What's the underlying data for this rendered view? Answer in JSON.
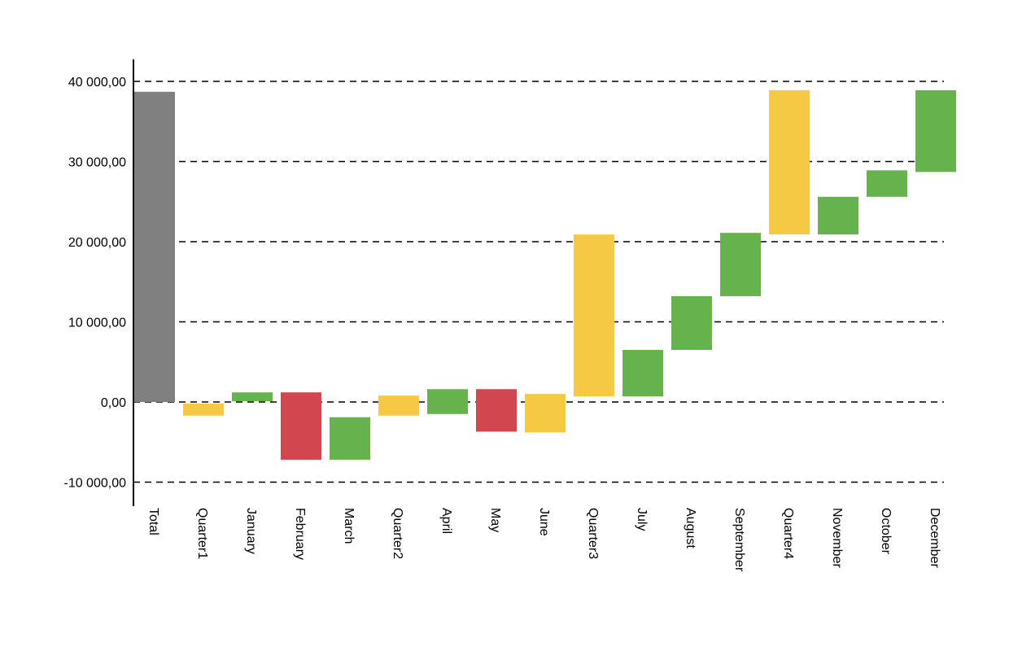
{
  "chart_data": {
    "type": "waterfall",
    "title": "",
    "xlabel": "",
    "ylabel": "",
    "ylim": [
      -13000,
      43000
    ],
    "grid": "horizontal dashed",
    "yticks": [
      {
        "value": 40000,
        "label": "40 000,00"
      },
      {
        "value": 30000,
        "label": "30 000,00"
      },
      {
        "value": 20000,
        "label": "20 000,00"
      },
      {
        "value": 10000,
        "label": "10 000,00"
      },
      {
        "value": 0,
        "label": "0,00"
      },
      {
        "value": -10000,
        "label": "-10 000,00"
      }
    ],
    "bars": [
      {
        "category": "Total",
        "start": 0,
        "end": 38700,
        "kind": "total"
      },
      {
        "category": "Quarter1",
        "start": -200,
        "end": -1700,
        "kind": "subtotal"
      },
      {
        "category": "January",
        "start": 100,
        "end": 1200,
        "kind": "increase"
      },
      {
        "category": "February",
        "start": 1200,
        "end": -7200,
        "kind": "decrease"
      },
      {
        "category": "March",
        "start": -7200,
        "end": -1900,
        "kind": "increase"
      },
      {
        "category": "Quarter2",
        "start": -1700,
        "end": 800,
        "kind": "subtotal"
      },
      {
        "category": "April",
        "start": -1500,
        "end": 1600,
        "kind": "increase"
      },
      {
        "category": "May",
        "start": 1600,
        "end": -3700,
        "kind": "decrease"
      },
      {
        "category": "June",
        "start": -3800,
        "end": 1000,
        "kind": "subtotal"
      },
      {
        "category": "Quarter3",
        "start": 700,
        "end": 20900,
        "kind": "subtotal"
      },
      {
        "category": "July",
        "start": 700,
        "end": 6500,
        "kind": "increase"
      },
      {
        "category": "August",
        "start": 6500,
        "end": 13200,
        "kind": "increase"
      },
      {
        "category": "September",
        "start": 13200,
        "end": 21100,
        "kind": "increase"
      },
      {
        "category": "Quarter4",
        "start": 20900,
        "end": 38900,
        "kind": "subtotal"
      },
      {
        "category": "November",
        "start": 20900,
        "end": 25600,
        "kind": "increase"
      },
      {
        "category": "October",
        "start": 25600,
        "end": 28900,
        "kind": "increase"
      },
      {
        "category": "December",
        "start": 28700,
        "end": 38900,
        "kind": "increase"
      }
    ],
    "colors": {
      "total": "#808080",
      "subtotal": "#f6c945",
      "increase": "#66b34d",
      "decrease": "#d1464f",
      "axis": "#000000",
      "grid": "#000000"
    }
  }
}
